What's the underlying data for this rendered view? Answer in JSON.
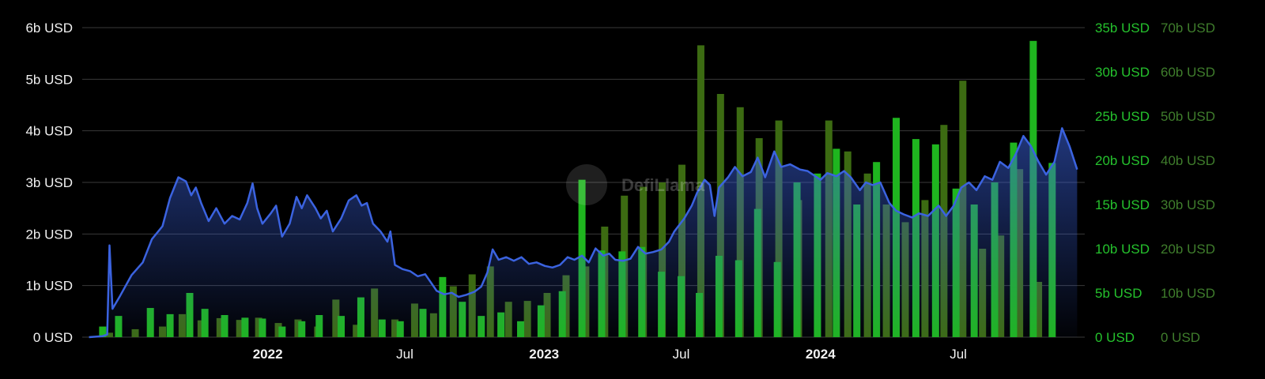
{
  "watermark": "DefiLlama",
  "colors": {
    "background": "#000000",
    "tvl_line": "#3b63e0",
    "bar_bright": "#1fb51f",
    "bar_dark": "#3c6b12",
    "axis_right1": "#25c22d",
    "axis_right2": "#3f7d2c",
    "grid": "#3a3a3a"
  },
  "chart_data": {
    "type": "line+bar",
    "x_range": [
      "2021-05-01",
      "2024-12-15"
    ],
    "x_ticks": [
      {
        "date": "2022-01-01",
        "label": "2022",
        "bold": true
      },
      {
        "date": "2022-07-01",
        "label": "Jul",
        "bold": false
      },
      {
        "date": "2023-01-01",
        "label": "2023",
        "bold": true
      },
      {
        "date": "2023-07-01",
        "label": "Jul",
        "bold": false
      },
      {
        "date": "2024-01-01",
        "label": "2024",
        "bold": true
      },
      {
        "date": "2024-07-01",
        "label": "Jul",
        "bold": false
      }
    ],
    "y_left": {
      "min": 0,
      "max": 6,
      "ticks": [
        "0 USD",
        "1b USD",
        "2b USD",
        "3b USD",
        "4b USD",
        "5b USD",
        "6b USD"
      ]
    },
    "y_right1": {
      "min": 0,
      "max": 35,
      "ticks": [
        "0 USD",
        "5b USD",
        "10b USD",
        "15b USD",
        "20b USD",
        "25b USD",
        "30b USD",
        "35b USD"
      ]
    },
    "y_right2": {
      "min": 0,
      "max": 70,
      "ticks": [
        "0 USD",
        "10b USD",
        "20b USD",
        "30b USD",
        "40b USD",
        "50b USD",
        "60b USD",
        "70b USD"
      ]
    },
    "line_series": {
      "unit": "b USD",
      "points": [
        [
          "2021-05-10",
          0.0
        ],
        [
          "2021-05-28",
          0.02
        ],
        [
          "2021-06-03",
          0.05
        ],
        [
          "2021-06-06",
          1.78
        ],
        [
          "2021-06-10",
          0.55
        ],
        [
          "2021-06-20",
          0.8
        ],
        [
          "2021-07-05",
          1.2
        ],
        [
          "2021-07-20",
          1.45
        ],
        [
          "2021-08-01",
          1.9
        ],
        [
          "2021-08-15",
          2.15
        ],
        [
          "2021-08-25",
          2.7
        ],
        [
          "2021-09-05",
          3.1
        ],
        [
          "2021-09-15",
          3.02
        ],
        [
          "2021-09-22",
          2.75
        ],
        [
          "2021-09-28",
          2.9
        ],
        [
          "2021-10-05",
          2.6
        ],
        [
          "2021-10-15",
          2.25
        ],
        [
          "2021-10-25",
          2.5
        ],
        [
          "2021-11-05",
          2.2
        ],
        [
          "2021-11-15",
          2.35
        ],
        [
          "2021-11-25",
          2.28
        ],
        [
          "2021-12-05",
          2.6
        ],
        [
          "2021-12-12",
          2.98
        ],
        [
          "2021-12-18",
          2.5
        ],
        [
          "2021-12-25",
          2.2
        ],
        [
          "2022-01-05",
          2.4
        ],
        [
          "2022-01-12",
          2.55
        ],
        [
          "2022-01-20",
          1.95
        ],
        [
          "2022-01-30",
          2.2
        ],
        [
          "2022-02-08",
          2.72
        ],
        [
          "2022-02-15",
          2.5
        ],
        [
          "2022-02-22",
          2.75
        ],
        [
          "2022-03-05",
          2.5
        ],
        [
          "2022-03-12",
          2.3
        ],
        [
          "2022-03-20",
          2.45
        ],
        [
          "2022-03-28",
          2.05
        ],
        [
          "2022-04-08",
          2.3
        ],
        [
          "2022-04-18",
          2.65
        ],
        [
          "2022-04-28",
          2.75
        ],
        [
          "2022-05-05",
          2.55
        ],
        [
          "2022-05-12",
          2.6
        ],
        [
          "2022-05-20",
          2.2
        ],
        [
          "2022-05-30",
          2.05
        ],
        [
          "2022-06-08",
          1.85
        ],
        [
          "2022-06-12",
          2.05
        ],
        [
          "2022-06-18",
          1.4
        ],
        [
          "2022-06-28",
          1.32
        ],
        [
          "2022-07-08",
          1.28
        ],
        [
          "2022-07-18",
          1.18
        ],
        [
          "2022-07-28",
          1.22
        ],
        [
          "2022-08-05",
          1.05
        ],
        [
          "2022-08-12",
          0.9
        ],
        [
          "2022-08-22",
          0.83
        ],
        [
          "2022-09-01",
          0.86
        ],
        [
          "2022-09-10",
          0.78
        ],
        [
          "2022-09-20",
          0.82
        ],
        [
          "2022-10-01",
          0.88
        ],
        [
          "2022-10-10",
          0.98
        ],
        [
          "2022-10-18",
          1.25
        ],
        [
          "2022-10-25",
          1.7
        ],
        [
          "2022-11-02",
          1.5
        ],
        [
          "2022-11-12",
          1.55
        ],
        [
          "2022-11-22",
          1.48
        ],
        [
          "2022-12-02",
          1.55
        ],
        [
          "2022-12-12",
          1.42
        ],
        [
          "2022-12-22",
          1.45
        ],
        [
          "2023-01-02",
          1.38
        ],
        [
          "2023-01-12",
          1.35
        ],
        [
          "2023-01-22",
          1.4
        ],
        [
          "2023-02-01",
          1.55
        ],
        [
          "2023-02-10",
          1.5
        ],
        [
          "2023-02-20",
          1.58
        ],
        [
          "2023-03-01",
          1.45
        ],
        [
          "2023-03-10",
          1.72
        ],
        [
          "2023-03-20",
          1.58
        ],
        [
          "2023-03-28",
          1.62
        ],
        [
          "2023-04-05",
          1.5
        ],
        [
          "2023-04-15",
          1.48
        ],
        [
          "2023-04-25",
          1.52
        ],
        [
          "2023-05-05",
          1.75
        ],
        [
          "2023-05-15",
          1.62
        ],
        [
          "2023-05-25",
          1.65
        ],
        [
          "2023-06-05",
          1.7
        ],
        [
          "2023-06-15",
          1.85
        ],
        [
          "2023-06-22",
          2.05
        ],
        [
          "2023-07-05",
          2.3
        ],
        [
          "2023-07-15",
          2.55
        ],
        [
          "2023-07-22",
          2.8
        ],
        [
          "2023-08-01",
          3.05
        ],
        [
          "2023-08-08",
          2.95
        ],
        [
          "2023-08-14",
          2.35
        ],
        [
          "2023-08-20",
          2.9
        ],
        [
          "2023-09-01",
          3.1
        ],
        [
          "2023-09-10",
          3.3
        ],
        [
          "2023-09-20",
          3.12
        ],
        [
          "2023-10-01",
          3.2
        ],
        [
          "2023-10-10",
          3.48
        ],
        [
          "2023-10-20",
          3.1
        ],
        [
          "2023-11-01",
          3.6
        ],
        [
          "2023-11-10",
          3.3
        ],
        [
          "2023-11-22",
          3.35
        ],
        [
          "2023-12-05",
          3.25
        ],
        [
          "2023-12-15",
          3.22
        ],
        [
          "2024-01-01",
          3.05
        ],
        [
          "2024-01-10",
          3.18
        ],
        [
          "2024-01-22",
          3.12
        ],
        [
          "2024-02-01",
          3.22
        ],
        [
          "2024-02-10",
          3.1
        ],
        [
          "2024-02-22",
          2.85
        ],
        [
          "2024-03-01",
          3.0
        ],
        [
          "2024-03-10",
          2.95
        ],
        [
          "2024-03-20",
          3.0
        ],
        [
          "2024-04-01",
          2.6
        ],
        [
          "2024-04-10",
          2.45
        ],
        [
          "2024-04-20",
          2.38
        ],
        [
          "2024-05-01",
          2.32
        ],
        [
          "2024-05-10",
          2.4
        ],
        [
          "2024-05-22",
          2.35
        ],
        [
          "2024-06-05",
          2.55
        ],
        [
          "2024-06-15",
          2.35
        ],
        [
          "2024-06-25",
          2.55
        ],
        [
          "2024-07-05",
          2.9
        ],
        [
          "2024-07-15",
          3.0
        ],
        [
          "2024-07-25",
          2.85
        ],
        [
          "2024-08-05",
          3.12
        ],
        [
          "2024-08-15",
          3.05
        ],
        [
          "2024-08-25",
          3.4
        ],
        [
          "2024-09-05",
          3.28
        ],
        [
          "2024-09-15",
          3.55
        ],
        [
          "2024-09-25",
          3.9
        ],
        [
          "2024-10-05",
          3.7
        ],
        [
          "2024-10-15",
          3.4
        ],
        [
          "2024-10-25",
          3.15
        ],
        [
          "2024-11-05",
          3.4
        ],
        [
          "2024-11-15",
          4.05
        ],
        [
          "2024-11-25",
          3.7
        ],
        [
          "2024-12-05",
          3.25
        ]
      ]
    },
    "bar_series": [
      {
        "axis": "right1",
        "color": "bright",
        "unit": "b USD",
        "bars": [
          [
            "2021-05-28",
            1.2
          ],
          [
            "2021-06-18",
            2.4
          ],
          [
            "2021-07-30",
            3.3
          ],
          [
            "2021-08-25",
            2.6
          ],
          [
            "2021-09-20",
            5.0
          ],
          [
            "2021-10-10",
            3.2
          ],
          [
            "2021-11-05",
            2.5
          ],
          [
            "2021-12-02",
            2.2
          ],
          [
            "2021-12-25",
            2.1
          ],
          [
            "2022-01-20",
            1.2
          ],
          [
            "2022-02-15",
            1.8
          ],
          [
            "2022-03-10",
            2.5
          ],
          [
            "2022-04-08",
            2.4
          ],
          [
            "2022-05-04",
            4.5
          ],
          [
            "2022-06-01",
            2.0
          ],
          [
            "2022-06-25",
            1.8
          ],
          [
            "2022-07-25",
            3.2
          ],
          [
            "2022-08-20",
            6.8
          ],
          [
            "2022-09-15",
            4.0
          ],
          [
            "2022-10-10",
            2.4
          ],
          [
            "2022-11-05",
            2.8
          ],
          [
            "2022-12-01",
            1.8
          ],
          [
            "2022-12-28",
            3.6
          ],
          [
            "2023-01-25",
            5.2
          ],
          [
            "2023-02-20",
            17.8
          ],
          [
            "2023-03-18",
            9.8
          ],
          [
            "2023-04-14",
            9.7
          ],
          [
            "2023-05-10",
            10.2
          ],
          [
            "2023-06-05",
            7.4
          ],
          [
            "2023-07-01",
            6.9
          ],
          [
            "2023-07-25",
            5.0
          ],
          [
            "2023-08-20",
            9.2
          ],
          [
            "2023-09-15",
            8.7
          ],
          [
            "2023-10-10",
            14.5
          ],
          [
            "2023-11-05",
            8.5
          ],
          [
            "2023-12-01",
            17.5
          ],
          [
            "2023-12-28",
            18.5
          ],
          [
            "2024-01-22",
            21.3
          ],
          [
            "2024-02-18",
            15.0
          ],
          [
            "2024-03-15",
            19.8
          ],
          [
            "2024-04-10",
            24.8
          ],
          [
            "2024-05-06",
            22.4
          ],
          [
            "2024-06-01",
            21.8
          ],
          [
            "2024-06-28",
            16.8
          ],
          [
            "2024-07-22",
            15.0
          ],
          [
            "2024-08-18",
            17.5
          ],
          [
            "2024-09-12",
            22.0
          ],
          [
            "2024-10-08",
            33.5
          ],
          [
            "2024-11-02",
            19.7
          ]
        ]
      },
      {
        "axis": "right2",
        "color": "dark",
        "unit": "b USD",
        "bars": [
          [
            "2021-06-06",
            1.0
          ],
          [
            "2021-07-10",
            1.8
          ],
          [
            "2021-08-15",
            2.4
          ],
          [
            "2021-09-10",
            5.2
          ],
          [
            "2021-10-05",
            3.8
          ],
          [
            "2021-10-30",
            4.3
          ],
          [
            "2021-11-25",
            3.9
          ],
          [
            "2021-12-20",
            4.4
          ],
          [
            "2022-01-15",
            3.2
          ],
          [
            "2022-02-10",
            4.0
          ],
          [
            "2022-03-08",
            2.4
          ],
          [
            "2022-04-01",
            8.5
          ],
          [
            "2022-04-28",
            2.8
          ],
          [
            "2022-05-22",
            11.0
          ],
          [
            "2022-06-18",
            4.0
          ],
          [
            "2022-07-14",
            7.6
          ],
          [
            "2022-08-08",
            5.4
          ],
          [
            "2022-09-03",
            11.5
          ],
          [
            "2022-09-28",
            14.2
          ],
          [
            "2022-10-22",
            16.0
          ],
          [
            "2022-11-15",
            8.0
          ],
          [
            "2022-12-10",
            8.2
          ],
          [
            "2023-01-05",
            10.0
          ],
          [
            "2023-01-30",
            14.0
          ],
          [
            "2023-02-25",
            16.0
          ],
          [
            "2023-03-22",
            25.0
          ],
          [
            "2023-04-17",
            32.0
          ],
          [
            "2023-05-12",
            34.0
          ],
          [
            "2023-06-06",
            35.0
          ],
          [
            "2023-07-02",
            39.0
          ],
          [
            "2023-07-27",
            66.0
          ],
          [
            "2023-08-22",
            55.0
          ],
          [
            "2023-09-17",
            52.0
          ],
          [
            "2023-10-12",
            45.0
          ],
          [
            "2023-11-07",
            49.0
          ],
          [
            "2023-12-03",
            31.0
          ],
          [
            "2024-01-12",
            49.0
          ],
          [
            "2024-02-06",
            42.0
          ],
          [
            "2024-03-03",
            37.0
          ],
          [
            "2024-03-28",
            30.0
          ],
          [
            "2024-04-22",
            26.0
          ],
          [
            "2024-05-18",
            31.0
          ],
          [
            "2024-06-12",
            48.0
          ],
          [
            "2024-07-07",
            58.0
          ],
          [
            "2024-08-02",
            20.0
          ],
          [
            "2024-08-26",
            23.0
          ],
          [
            "2024-09-20",
            38.0
          ],
          [
            "2024-10-15",
            12.5
          ]
        ]
      }
    ]
  }
}
